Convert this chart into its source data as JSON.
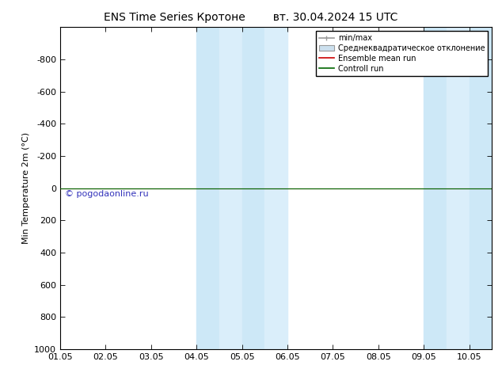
{
  "title_left": "ENS Time Series Кротоне",
  "title_right": "вт. 30.04.2024 15 UTC",
  "ylabel": "Min Temperature 2m (°C)",
  "ylim_top": -1000,
  "ylim_bottom": 1000,
  "yticks": [
    -800,
    -600,
    -400,
    -200,
    0,
    200,
    400,
    600,
    800,
    1000
  ],
  "xlim": [
    1,
    10.5
  ],
  "xtick_positions": [
    1,
    2,
    3,
    4,
    5,
    6,
    7,
    8,
    9,
    10
  ],
  "xtick_labels": [
    "01.05",
    "02.05",
    "03.05",
    "04.05",
    "05.05",
    "06.05",
    "07.05",
    "08.05",
    "09.05",
    "10.05"
  ],
  "shaded_bands": [
    {
      "x_start": 4.0,
      "x_end": 4.5,
      "color": "#cde8f7"
    },
    {
      "x_start": 4.5,
      "x_end": 5.0,
      "color": "#daeefa"
    },
    {
      "x_start": 5.0,
      "x_end": 5.5,
      "color": "#cde8f7"
    },
    {
      "x_start": 5.5,
      "x_end": 6.0,
      "color": "#daeefa"
    },
    {
      "x_start": 9.0,
      "x_end": 9.5,
      "color": "#cde8f7"
    },
    {
      "x_start": 9.5,
      "x_end": 10.0,
      "color": "#daeefa"
    },
    {
      "x_start": 10.0,
      "x_end": 10.5,
      "color": "#cde8f7"
    }
  ],
  "green_line_y": 0,
  "red_line_y": 0,
  "watermark": "© pogodaonline.ru",
  "watermark_color": "#3333bb",
  "legend_labels": [
    "min/max",
    "Среднеквадратическое отклонение",
    "Ensemble mean run",
    "Controll run"
  ],
  "legend_colors": [
    "#999999",
    "#bbccdd",
    "#dd0000",
    "#007700"
  ],
  "background_color": "#ffffff"
}
